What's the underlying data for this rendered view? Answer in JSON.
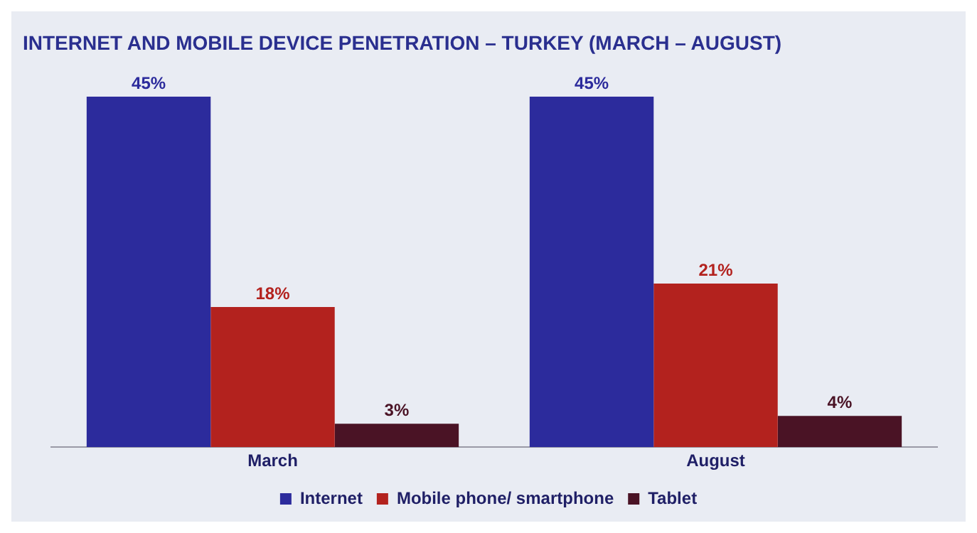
{
  "chart_data": {
    "type": "bar",
    "title": "INTERNET AND MOBILE DEVICE PENETRATION – TURKEY (MARCH – AUGUST)",
    "categories": [
      "March",
      "August"
    ],
    "series": [
      {
        "name": "Internet",
        "color": "#2c2b9c",
        "values": [
          45,
          45
        ],
        "value_labels": [
          "45%",
          "45%"
        ]
      },
      {
        "name": "Mobile phone/ smartphone",
        "color": "#b3221e",
        "values": [
          18,
          21
        ],
        "value_labels": [
          "18%",
          "21%"
        ]
      },
      {
        "name": "Tablet",
        "color": "#4a1325",
        "values": [
          3,
          4
        ],
        "value_labels": [
          "3%",
          "4%"
        ]
      }
    ],
    "grid": false,
    "legend": "bottom"
  }
}
